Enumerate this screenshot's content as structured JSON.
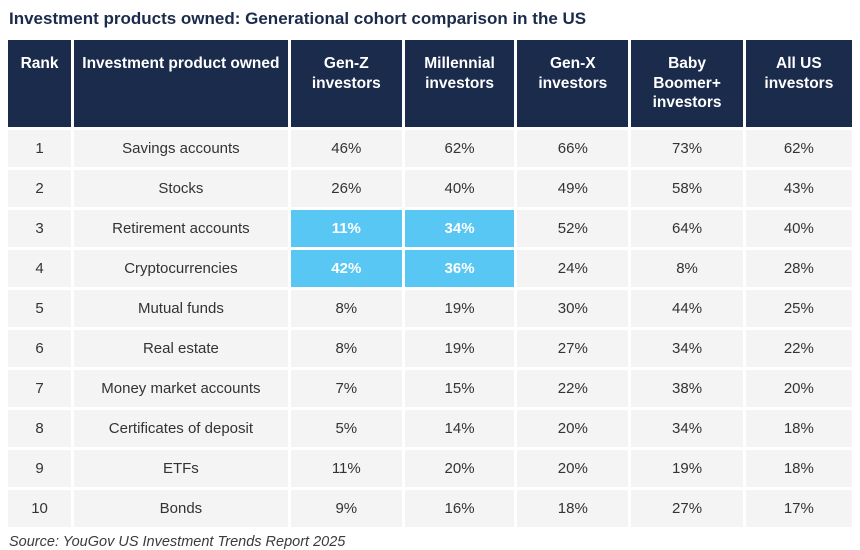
{
  "title": "Investment products owned: Generational cohort comparison in the US",
  "source": "Source: YouGov US Investment Trends Report 2025",
  "colors": {
    "navy": "#1b2b4c",
    "highlight": "#59c7f3",
    "row_bg": "#f4f4f5",
    "body_text": "#333333",
    "page_bg": "#ffffff",
    "source_text": "#3b3b3b"
  },
  "table": {
    "headers": [
      "Rank",
      "Investment product owned",
      "Gen-Z investors",
      "Millennial investors",
      "Gen-X investors",
      "Baby Boomer+ investors",
      "All US investors"
    ],
    "rows": [
      {
        "rank": "1",
        "product": "Savings accounts",
        "values": [
          "46%",
          "62%",
          "66%",
          "73%",
          "62%"
        ]
      },
      {
        "rank": "2",
        "product": "Stocks",
        "values": [
          "26%",
          "40%",
          "49%",
          "58%",
          "43%"
        ]
      },
      {
        "rank": "3",
        "product": "Retirement accounts",
        "values": [
          "11%",
          "34%",
          "52%",
          "64%",
          "40%"
        ]
      },
      {
        "rank": "4",
        "product": "Cryptocurrencies",
        "values": [
          "42%",
          "36%",
          "24%",
          "8%",
          "28%"
        ]
      },
      {
        "rank": "5",
        "product": "Mutual funds",
        "values": [
          "8%",
          "19%",
          "30%",
          "44%",
          "25%"
        ]
      },
      {
        "rank": "6",
        "product": "Real estate",
        "values": [
          "8%",
          "19%",
          "27%",
          "34%",
          "22%"
        ]
      },
      {
        "rank": "7",
        "product": "Money market accounts",
        "values": [
          "7%",
          "15%",
          "22%",
          "38%",
          "20%"
        ]
      },
      {
        "rank": "8",
        "product": "Certificates of deposit",
        "values": [
          "5%",
          "14%",
          "20%",
          "34%",
          "18%"
        ]
      },
      {
        "rank": "9",
        "product": "ETFs",
        "values": [
          "11%",
          "20%",
          "20%",
          "19%",
          "18%"
        ]
      },
      {
        "rank": "10",
        "product": "Bonds",
        "values": [
          "9%",
          "16%",
          "18%",
          "27%",
          "17%"
        ]
      }
    ]
  },
  "chart_data": {
    "type": "table",
    "title": "Investment products owned: Generational cohort comparison in the US",
    "categories": [
      "Savings accounts",
      "Stocks",
      "Retirement accounts",
      "Cryptocurrencies",
      "Mutual funds",
      "Real estate",
      "Money market accounts",
      "Certificates of deposit",
      "ETFs",
      "Bonds"
    ],
    "series": [
      {
        "name": "Gen-Z investors",
        "values": [
          46,
          26,
          11,
          42,
          8,
          8,
          7,
          5,
          11,
          9
        ]
      },
      {
        "name": "Millennial investors",
        "values": [
          62,
          40,
          34,
          36,
          19,
          19,
          15,
          14,
          20,
          16
        ]
      },
      {
        "name": "Gen-X investors",
        "values": [
          66,
          49,
          52,
          24,
          30,
          27,
          22,
          20,
          20,
          18
        ]
      },
      {
        "name": "Baby Boomer+ investors",
        "values": [
          73,
          58,
          64,
          8,
          44,
          34,
          38,
          34,
          19,
          27
        ]
      },
      {
        "name": "All US investors",
        "values": [
          62,
          43,
          40,
          28,
          25,
          22,
          20,
          18,
          18,
          17
        ]
      }
    ],
    "unit": "%",
    "highlighted_cells": [
      {
        "category": "Retirement accounts",
        "series": [
          "Gen-Z investors",
          "Millennial investors"
        ],
        "color": "#59c7f3"
      },
      {
        "category": "Cryptocurrencies",
        "series": [
          "Gen-Z investors",
          "Millennial investors"
        ],
        "color": "#59c7f3"
      }
    ],
    "source": "Source: YouGov US Investment Trends Report 2025"
  }
}
